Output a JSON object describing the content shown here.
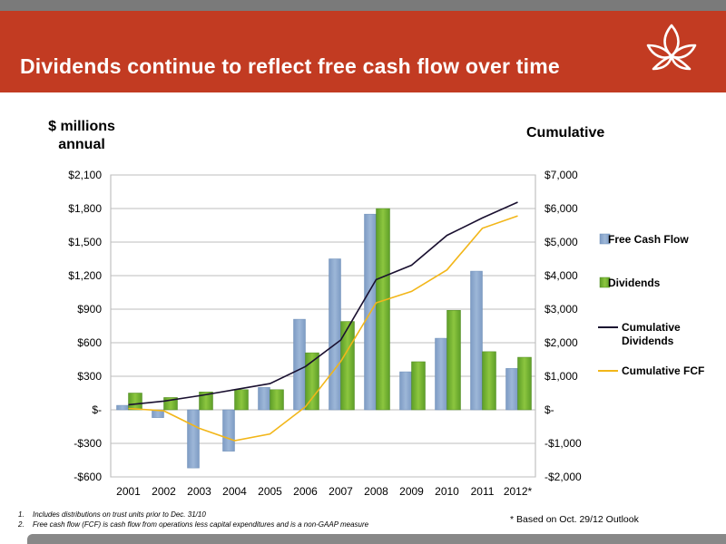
{
  "slide": {
    "title": "Dividends continue to reflect free cash flow over time",
    "left_axis_title_line1": "$ millions",
    "left_axis_title_line2": "annual",
    "right_axis_title": "Cumulative",
    "footnotes": [
      {
        "num": "1.",
        "text": "Includes distributions on trust units prior to Dec. 31/10"
      },
      {
        "num": "2.",
        "text": "Free cash flow (FCF) is cash flow from operations less capital expenditures and is a non-GAAP measure"
      }
    ],
    "outlook_note": "* Based on Oct. 29/12 Outlook"
  },
  "colors": {
    "banner": "#c23b22",
    "fcf_bar": "#9db7d8",
    "dividends_bar": "#8cc63f",
    "cumulative_dividends": "#1a1030",
    "cumulative_fcf": "#f2b619"
  },
  "chart_data": {
    "type": "bar",
    "categories": [
      "2001",
      "2002",
      "2003",
      "2004",
      "2005",
      "2006",
      "2007",
      "2008",
      "2009",
      "2010",
      "2011",
      "2012*"
    ],
    "series": [
      {
        "name": "Free Cash Flow",
        "kind": "bar",
        "axis": "left",
        "values": [
          40,
          -70,
          -520,
          -370,
          200,
          810,
          1350,
          1750,
          340,
          640,
          1240,
          370
        ]
      },
      {
        "name": "Dividends",
        "kind": "bar",
        "axis": "left",
        "values": [
          150,
          110,
          160,
          180,
          180,
          510,
          790,
          1800,
          430,
          890,
          520,
          470
        ]
      },
      {
        "name": "Cumulative Dividends",
        "kind": "line",
        "axis": "right",
        "values": [
          150,
          260,
          420,
          600,
          780,
          1290,
          2080,
          3880,
          4310,
          5200,
          5720,
          6190
        ]
      },
      {
        "name": "Cumulative FCF",
        "kind": "line",
        "axis": "right",
        "values": [
          40,
          -30,
          -550,
          -920,
          -720,
          90,
          1440,
          3190,
          3530,
          4170,
          5410,
          5780
        ]
      }
    ],
    "left_axis": {
      "min": -600,
      "max": 2100,
      "step": 300,
      "ticks": [
        "-$600",
        "-$300",
        "$-",
        "$300",
        "$600",
        "$900",
        "$1,200",
        "$1,500",
        "$1,800",
        "$2,100"
      ]
    },
    "right_axis": {
      "min": -2000,
      "max": 7000,
      "step": 1000,
      "ticks": [
        "-$2,000",
        "-$1,000",
        "$-",
        "$1,000",
        "$2,000",
        "$3,000",
        "$4,000",
        "$5,000",
        "$6,000",
        "$7,000"
      ]
    },
    "grid": true,
    "legend_position": "right",
    "legend": [
      "Free Cash Flow",
      "Dividends",
      "Cumulative Dividends",
      "Cumulative FCF"
    ]
  }
}
